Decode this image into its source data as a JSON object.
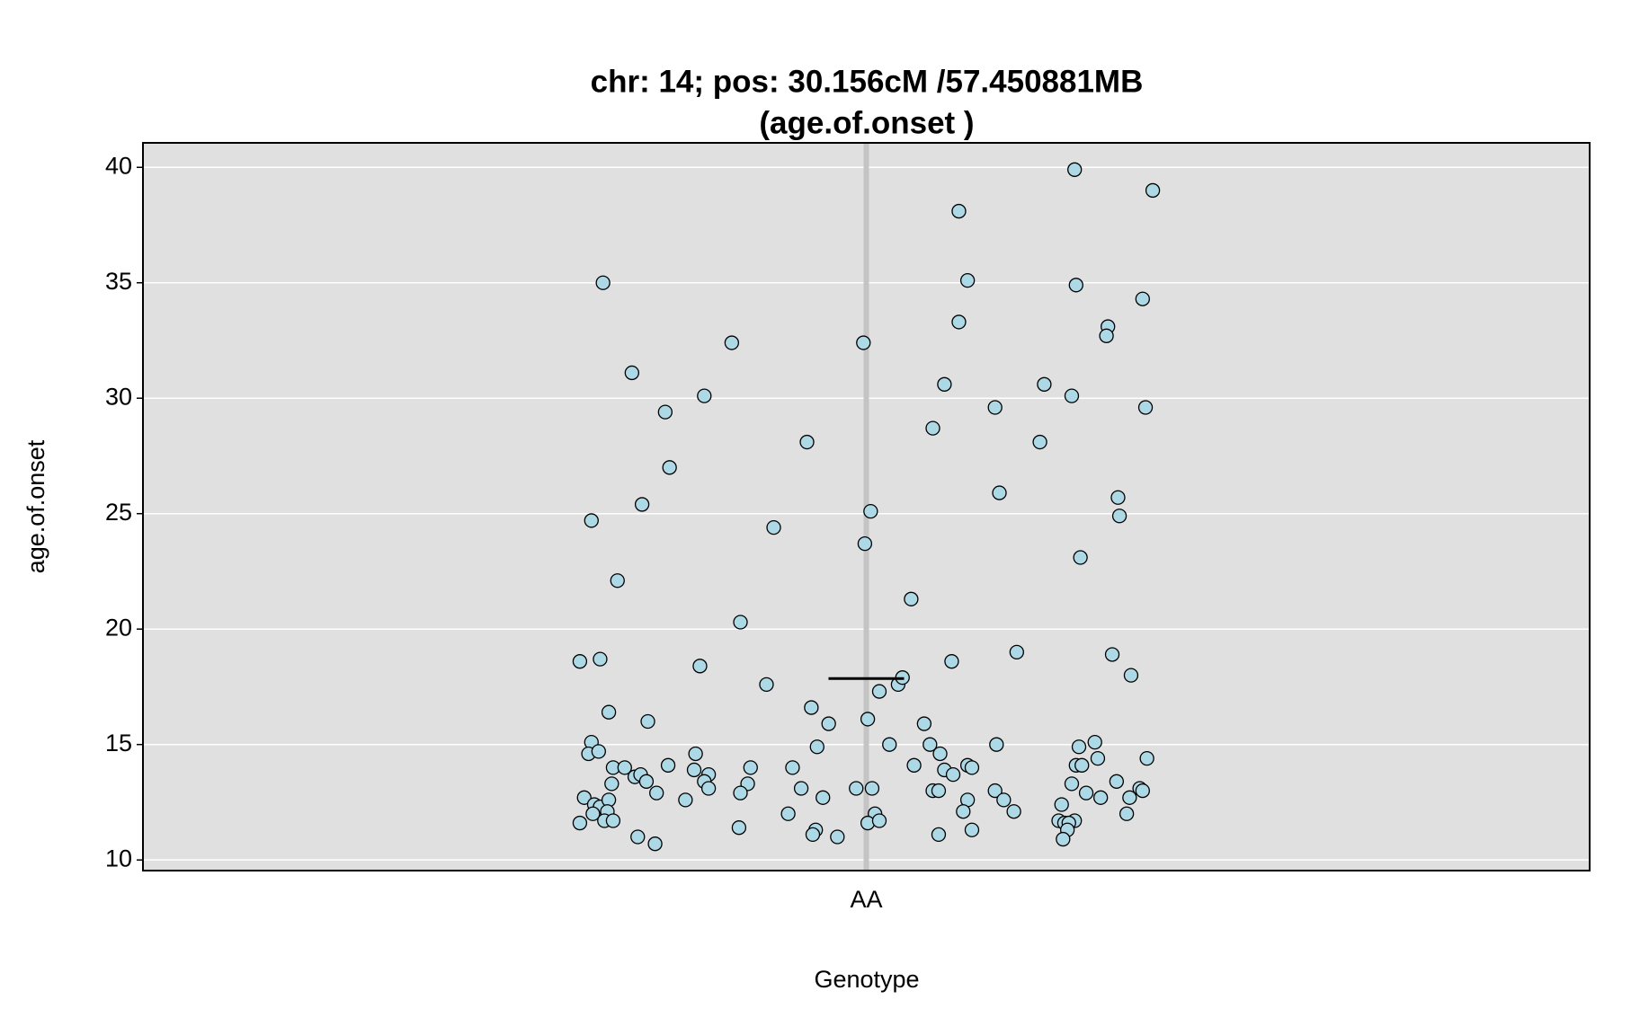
{
  "chart_data": {
    "type": "scatter",
    "title": [
      "chr: 14; pos: 30.156cM /57.450881MB",
      "(age.of.onset )"
    ],
    "xlabel": "Genotype",
    "ylabel": "age.of.onset",
    "xlim": [
      0.5,
      1.5
    ],
    "xticks": [
      {
        "value": 1,
        "label": "AA"
      }
    ],
    "ylim": [
      9.54,
      41.06
    ],
    "yticks": [
      10,
      15,
      20,
      25,
      30,
      35,
      40
    ],
    "grid": true,
    "color": "#add8e6",
    "mean": 17.86,
    "x": [
      0.802,
      0.816,
      0.818,
      0.81,
      0.828,
      0.822,
      0.81,
      0.808,
      0.815,
      0.825,
      0.833,
      0.824,
      0.805,
      0.812,
      0.816,
      0.822,
      0.821,
      0.811,
      0.802,
      0.819,
      0.825,
      0.838,
      0.845,
      0.849,
      0.84,
      0.844,
      0.848,
      0.855,
      0.842,
      0.854,
      0.861,
      0.864,
      0.863,
      0.875,
      0.888,
      0.885,
      0.882,
      0.881,
      0.891,
      0.888,
      0.891,
      0.907,
      0.913,
      0.92,
      0.918,
      0.913,
      0.912,
      0.936,
      0.931,
      0.949,
      0.955,
      0.946,
      0.959,
      0.962,
      0.974,
      0.966,
      0.97,
      0.965,
      0.963,
      0.98,
      0.998,
      1.003,
      0.999,
      1.001,
      0.993,
      1.004,
      1.006,
      1.001,
      1.009,
      1.009,
      1.022,
      1.025,
      1.016,
      1.031,
      1.064,
      1.07,
      1.064,
      1.054,
      1.046,
      1.059,
      1.04,
      1.044,
      1.051,
      1.033,
      1.054,
      1.06,
      1.07,
      1.073,
      1.046,
      1.05,
      1.07,
      1.067,
      1.05,
      1.073,
      1.089,
      1.092,
      1.104,
      1.09,
      1.089,
      1.095,
      1.102,
      1.123,
      1.12,
      1.144,
      1.145,
      1.142,
      1.148,
      1.147,
      1.145,
      1.149,
      1.142,
      1.152,
      1.135,
      1.133,
      1.137,
      1.144,
      1.14,
      1.139,
      1.136,
      1.167,
      1.166,
      1.174,
      1.175,
      1.17,
      1.158,
      1.16,
      1.162,
      1.173,
      1.198,
      1.191,
      1.193,
      1.183,
      1.194,
      1.189,
      1.191,
      1.182,
      1.18
    ],
    "values": [
      18.6,
      18.7,
      35.0,
      24.7,
      22.1,
      16.4,
      15.1,
      14.6,
      14.7,
      14.0,
      14.0,
      13.3,
      12.7,
      12.4,
      12.3,
      12.6,
      12.1,
      12.0,
      11.6,
      11.7,
      11.7,
      31.1,
      25.4,
      16.0,
      13.6,
      13.7,
      13.4,
      12.9,
      11.0,
      10.7,
      29.4,
      27.0,
      14.1,
      12.6,
      30.1,
      18.4,
      14.6,
      13.9,
      13.7,
      13.4,
      13.1,
      32.4,
      20.3,
      14.0,
      13.3,
      12.9,
      11.4,
      24.4,
      17.6,
      14.0,
      13.1,
      12.0,
      28.1,
      16.6,
      15.9,
      14.9,
      12.7,
      11.3,
      11.1,
      11.0,
      32.4,
      25.1,
      23.7,
      16.1,
      13.1,
      13.1,
      12.0,
      11.6,
      11.7,
      17.3,
      17.6,
      17.9,
      15.0,
      21.3,
      38.1,
      35.1,
      33.3,
      30.6,
      28.7,
      18.6,
      15.9,
      15.0,
      14.6,
      14.1,
      13.9,
      13.7,
      14.1,
      14.0,
      13.0,
      13.0,
      12.6,
      12.1,
      11.1,
      11.3,
      29.6,
      25.9,
      19.0,
      15.0,
      13.0,
      12.6,
      12.1,
      30.6,
      28.1,
      39.9,
      34.9,
      30.1,
      23.1,
      14.9,
      14.1,
      14.1,
      13.3,
      12.9,
      12.4,
      11.7,
      11.6,
      11.7,
      11.6,
      11.3,
      10.9,
      33.1,
      32.7,
      25.7,
      24.9,
      18.9,
      15.1,
      14.4,
      12.7,
      13.4,
      39.0,
      34.3,
      29.6,
      18.0,
      14.4,
      13.1,
      13.0,
      12.7,
      12.0
    ]
  }
}
